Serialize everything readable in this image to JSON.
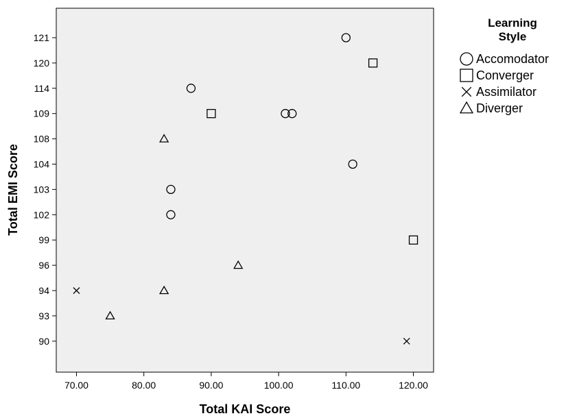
{
  "chart_data": {
    "type": "scatter",
    "xlabel": "Total KAI Score",
    "ylabel": "Total EMI Score",
    "x_ticks": [
      "70.00",
      "80.00",
      "90.00",
      "100.00",
      "110.00",
      "120.00"
    ],
    "x_tick_values": [
      70,
      80,
      90,
      100,
      110,
      120
    ],
    "xlim": [
      67,
      123
    ],
    "y_categories": [
      "121",
      "120",
      "114",
      "109",
      "108",
      "104",
      "103",
      "102",
      "99",
      "96",
      "94",
      "93",
      "90"
    ],
    "y_axis_note": "categorical EMI values, top to bottom",
    "legend_title": "Learning Style",
    "legend_position": "right",
    "background_color": "#efefef",
    "series": [
      {
        "name": "Accomodator",
        "marker": "circle",
        "points": [
          {
            "x": 110,
            "y": "121"
          },
          {
            "x": 87,
            "y": "114"
          },
          {
            "x": 101,
            "y": "109"
          },
          {
            "x": 102,
            "y": "109"
          },
          {
            "x": 111,
            "y": "104"
          },
          {
            "x": 84,
            "y": "103"
          },
          {
            "x": 84,
            "y": "102"
          }
        ]
      },
      {
        "name": "Converger",
        "marker": "square",
        "points": [
          {
            "x": 114,
            "y": "120"
          },
          {
            "x": 90,
            "y": "109"
          },
          {
            "x": 120,
            "y": "99"
          }
        ]
      },
      {
        "name": "Assimilator",
        "marker": "x",
        "points": [
          {
            "x": 70,
            "y": "94"
          },
          {
            "x": 119,
            "y": "90"
          }
        ]
      },
      {
        "name": "Diverger",
        "marker": "triangle",
        "points": [
          {
            "x": 83,
            "y": "108"
          },
          {
            "x": 94,
            "y": "96"
          },
          {
            "x": 83,
            "y": "94"
          },
          {
            "x": 75,
            "y": "93"
          }
        ]
      }
    ]
  }
}
